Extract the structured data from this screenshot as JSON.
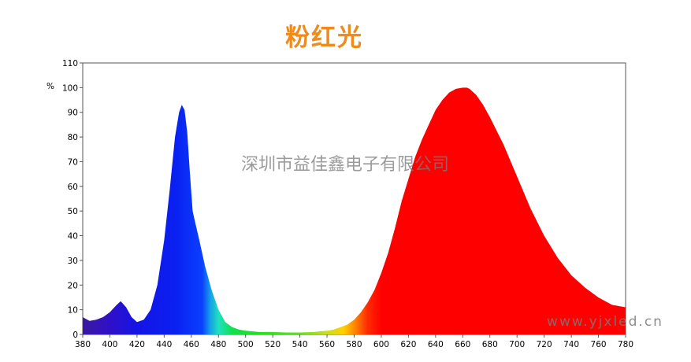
{
  "title": "粉红光",
  "watermark_company": "深圳市益佳鑫电子有限公司",
  "watermark_url": "www.yjxled.cn",
  "colors": {
    "title": "#f08a1a",
    "blue_peak": "#1414e6",
    "red_peak": "#ff0000"
  },
  "chart_data": {
    "type": "area",
    "title": "粉红光",
    "xlabel": "",
    "ylabel": "%",
    "xlim": [
      380,
      780
    ],
    "ylim": [
      0,
      110
    ],
    "xticks": [
      380,
      400,
      420,
      440,
      460,
      480,
      500,
      520,
      540,
      560,
      580,
      600,
      620,
      640,
      660,
      680,
      700,
      720,
      740,
      760,
      780
    ],
    "yticks": [
      0,
      10,
      20,
      30,
      40,
      50,
      60,
      70,
      80,
      90,
      100,
      110
    ],
    "fill": "spectral color gradient",
    "grid": false,
    "series": [
      {
        "x": [
          380,
          385,
          390,
          395,
          400,
          405,
          408,
          412,
          416,
          420,
          425,
          430,
          435,
          440,
          444,
          448,
          451,
          453,
          455,
          457,
          459,
          461,
          463,
          466,
          470,
          475,
          480,
          485,
          490,
          495,
          500,
          510,
          520,
          530,
          540,
          550,
          560,
          565,
          570,
          575,
          580,
          585,
          590,
          595,
          600,
          605,
          610,
          615,
          620,
          625,
          630,
          635,
          640,
          645,
          650,
          655,
          660,
          663,
          665,
          670,
          675,
          680,
          690,
          700,
          710,
          720,
          730,
          740,
          750,
          760,
          770,
          780
        ],
        "y": [
          7,
          5.5,
          6,
          7,
          9,
          12,
          13.5,
          11,
          7,
          5,
          6,
          10,
          20,
          38,
          58,
          80,
          90,
          93,
          91,
          82,
          65,
          50,
          45,
          38,
          28,
          18,
          10,
          5,
          3,
          2,
          1.5,
          1,
          1,
          0.8,
          0.8,
          1,
          1.5,
          2,
          3,
          4,
          6,
          9,
          13,
          18,
          25,
          33,
          43,
          54,
          63,
          72,
          79,
          85,
          91,
          95,
          98,
          99.5,
          100,
          100,
          99.5,
          97,
          93,
          88,
          77,
          64,
          51,
          40,
          31,
          24,
          19,
          15,
          12,
          11
        ]
      }
    ]
  }
}
